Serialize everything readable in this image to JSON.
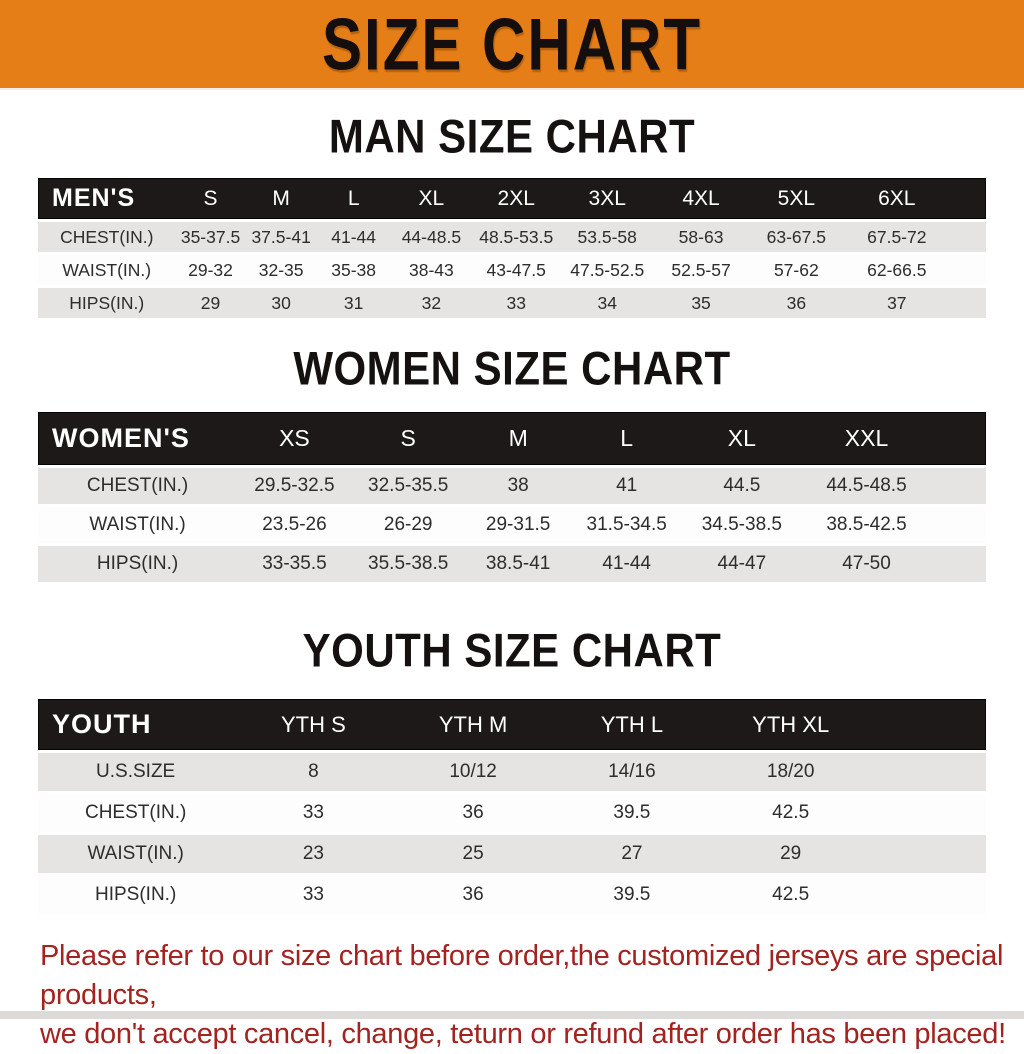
{
  "banner": {
    "title": "SIZE CHART",
    "bg_color": "#e57e17",
    "text_color": "#140e0e"
  },
  "colors": {
    "table_header_bg": "#1d1919",
    "row_alt_bg": "#e6e4e2",
    "notice_text": "#a2231f"
  },
  "tables": {
    "men": {
      "title": "MAN SIZE CHART",
      "header_label": "MEN'S",
      "sizes": [
        "S",
        "M",
        "L",
        "XL",
        "2XL",
        "3XL",
        "4XL",
        "5XL",
        "6XL"
      ],
      "rows": [
        {
          "label": "CHEST(IN.)",
          "values": [
            "35-37.5",
            "37.5-41",
            "41-44",
            "44-48.5",
            "48.5-53.5",
            "53.5-58",
            "58-63",
            "63-67.5",
            "67.5-72"
          ]
        },
        {
          "label": "WAIST(IN.)",
          "values": [
            "29-32",
            "32-35",
            "35-38",
            "38-43",
            "43-47.5",
            "47.5-52.5",
            "52.5-57",
            "57-62",
            "62-66.5"
          ]
        },
        {
          "label": "HIPS(IN.)",
          "values": [
            "29",
            "30",
            "31",
            "32",
            "33",
            "34",
            "35",
            "36",
            "37"
          ]
        }
      ]
    },
    "women": {
      "title": "WOMEN SIZE CHART",
      "header_label": "WOMEN'S",
      "sizes": [
        "XS",
        "S",
        "M",
        "L",
        "XL",
        "XXL"
      ],
      "rows": [
        {
          "label": "CHEST(IN.)",
          "values": [
            "29.5-32.5",
            "32.5-35.5",
            "38",
            "41",
            "44.5",
            "44.5-48.5"
          ]
        },
        {
          "label": "WAIST(IN.)",
          "values": [
            "23.5-26",
            "26-29",
            "29-31.5",
            "31.5-34.5",
            "34.5-38.5",
            "38.5-42.5"
          ]
        },
        {
          "label": "HIPS(IN.)",
          "values": [
            "33-35.5",
            "35.5-38.5",
            "38.5-41",
            "41-44",
            "44-47",
            "47-50"
          ]
        }
      ]
    },
    "youth": {
      "title": "YOUTH SIZE CHART",
      "header_label": "YOUTH",
      "sizes": [
        "YTH S",
        "YTH M",
        "YTH L",
        "YTH XL"
      ],
      "rows": [
        {
          "label": "U.S.SIZE",
          "values": [
            "8",
            "10/12",
            "14/16",
            "18/20"
          ]
        },
        {
          "label": "CHEST(IN.)",
          "values": [
            "33",
            "36",
            "39.5",
            "42.5"
          ]
        },
        {
          "label": "WAIST(IN.)",
          "values": [
            "23",
            "25",
            "27",
            "29"
          ]
        },
        {
          "label": "HIPS(IN.)",
          "values": [
            "33",
            "36",
            "39.5",
            "42.5"
          ]
        }
      ]
    }
  },
  "footer": {
    "line1": "Please refer to our size chart before order,the customized jerseys are special products,",
    "line2": "we don't accept cancel, change, teturn or refund after order has been placed!"
  }
}
